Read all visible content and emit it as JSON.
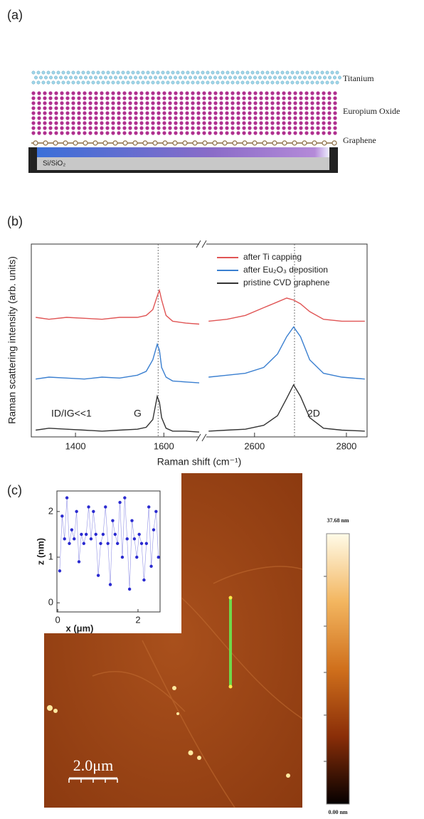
{
  "panel_labels": [
    "(a)",
    "(b)",
    "(c)"
  ],
  "diagram": {
    "layers": [
      "Titanium",
      "Europium Oxide",
      "Graphene"
    ],
    "substrate": "Si/SiO₂"
  },
  "afm": {
    "scale_bar": "2.0μm",
    "colorbar": {
      "lim": [
        0,
        37.68
      ],
      "ticks": [
        {
          "value": 0,
          "label": "0.00 nm"
        },
        {
          "value": 37.68,
          "label": "37.68 nm"
        }
      ]
    }
  },
  "chart_data": [
    {
      "type": "line",
      "xlabel": "Raman shift (cm⁻¹)",
      "ylabel": "Raman scattering intensity (arb. units)",
      "x": [
        1310,
        1340,
        1380,
        1420,
        1460,
        1500,
        1540,
        1560,
        1575,
        1585,
        1590,
        1595,
        1605,
        1620,
        1650,
        1680,
        1700,
        2500,
        2540,
        2580,
        2620,
        2650,
        2670,
        2685,
        2700,
        2720,
        2750,
        2790,
        2840
      ],
      "series": [
        {
          "name": "after Ti capping",
          "color": "#e05555",
          "values": [
            6.2,
            6.1,
            6.2,
            6.15,
            6.1,
            6.2,
            6.2,
            6.3,
            6.6,
            7.3,
            7.6,
            7.1,
            6.3,
            6.0,
            5.9,
            5.85,
            null,
            6.0,
            6.1,
            6.3,
            6.7,
            7.0,
            7.2,
            7.1,
            6.9,
            6.5,
            6.1,
            6.0,
            6.0
          ]
        },
        {
          "name": "after Eu₂O₃ deposition",
          "color": "#3a7fd0",
          "values": [
            3.0,
            3.1,
            3.05,
            3.0,
            3.1,
            3.05,
            3.2,
            3.4,
            4.0,
            4.8,
            4.5,
            3.6,
            3.1,
            2.9,
            2.85,
            2.8,
            null,
            3.1,
            3.2,
            3.3,
            3.6,
            4.3,
            5.2,
            5.7,
            5.2,
            4.0,
            3.3,
            3.1,
            3.0
          ]
        },
        {
          "name": "pristine CVD graphene",
          "color": "#333333",
          "values": [
            0.35,
            0.45,
            0.4,
            0.35,
            0.3,
            0.35,
            0.4,
            0.5,
            0.9,
            2.1,
            1.8,
            1.0,
            0.45,
            0.3,
            0.3,
            0.25,
            null,
            0.3,
            0.35,
            0.4,
            0.6,
            1.1,
            2.0,
            2.7,
            2.1,
            1.0,
            0.45,
            0.35,
            0.3
          ]
        }
      ],
      "xlim": [
        [
          1300,
          1680
        ],
        [
          2495,
          2845
        ]
      ],
      "xticks": [
        1400,
        1600,
        2600,
        2800
      ],
      "ylim": [
        0,
        10
      ],
      "vlines": [
        1587,
        2687
      ],
      "legend": "upper right",
      "annotations": [
        "ID/IG<<1",
        "G",
        "2D"
      ]
    },
    {
      "type": "scatter",
      "xlabel": "x (μm)",
      "ylabel": "z (nm)",
      "color": "#2a2ad0",
      "x": [
        0.05,
        0.11,
        0.17,
        0.23,
        0.29,
        0.35,
        0.41,
        0.47,
        0.53,
        0.59,
        0.65,
        0.71,
        0.77,
        0.83,
        0.89,
        0.95,
        1.01,
        1.07,
        1.13,
        1.19,
        1.25,
        1.31,
        1.37,
        1.43,
        1.49,
        1.55,
        1.61,
        1.67,
        1.73,
        1.79,
        1.85,
        1.91,
        1.97,
        2.03,
        2.09,
        2.15,
        2.21,
        2.27,
        2.33,
        2.39,
        2.45,
        2.51
      ],
      "values": [
        0.7,
        1.9,
        1.4,
        2.3,
        1.3,
        1.6,
        1.4,
        2.0,
        0.9,
        1.5,
        1.3,
        1.5,
        2.1,
        1.4,
        2.0,
        1.5,
        0.6,
        1.3,
        1.5,
        2.1,
        1.3,
        0.4,
        1.8,
        1.5,
        1.3,
        2.2,
        1.0,
        2.3,
        1.4,
        0.3,
        1.8,
        1.4,
        1.0,
        1.5,
        1.3,
        0.5,
        1.3,
        2.1,
        0.8,
        1.6,
        2.0,
        1.0
      ],
      "xlim": [
        -0.02,
        2.55
      ],
      "xticks": [
        0,
        2
      ],
      "ylim": [
        -0.2,
        2.45
      ],
      "yticks": [
        0,
        1,
        2
      ]
    }
  ]
}
